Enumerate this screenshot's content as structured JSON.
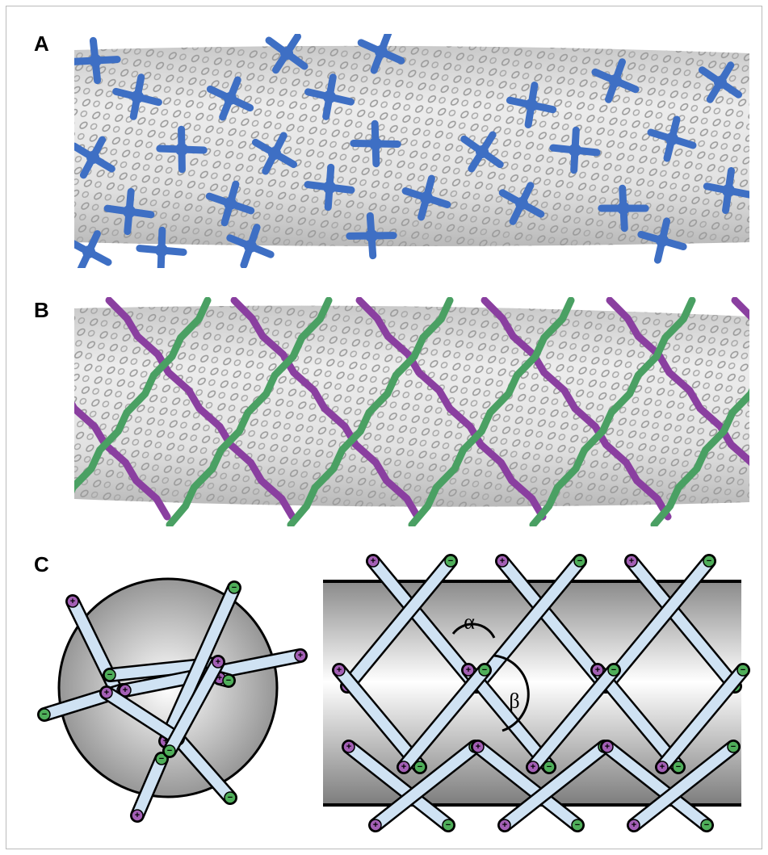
{
  "panels": {
    "a": "A",
    "b": "B",
    "c": "C"
  },
  "symbols": {
    "plus": "+",
    "minus": "−"
  },
  "angles": {
    "alpha": "α",
    "beta": "β"
  }
}
